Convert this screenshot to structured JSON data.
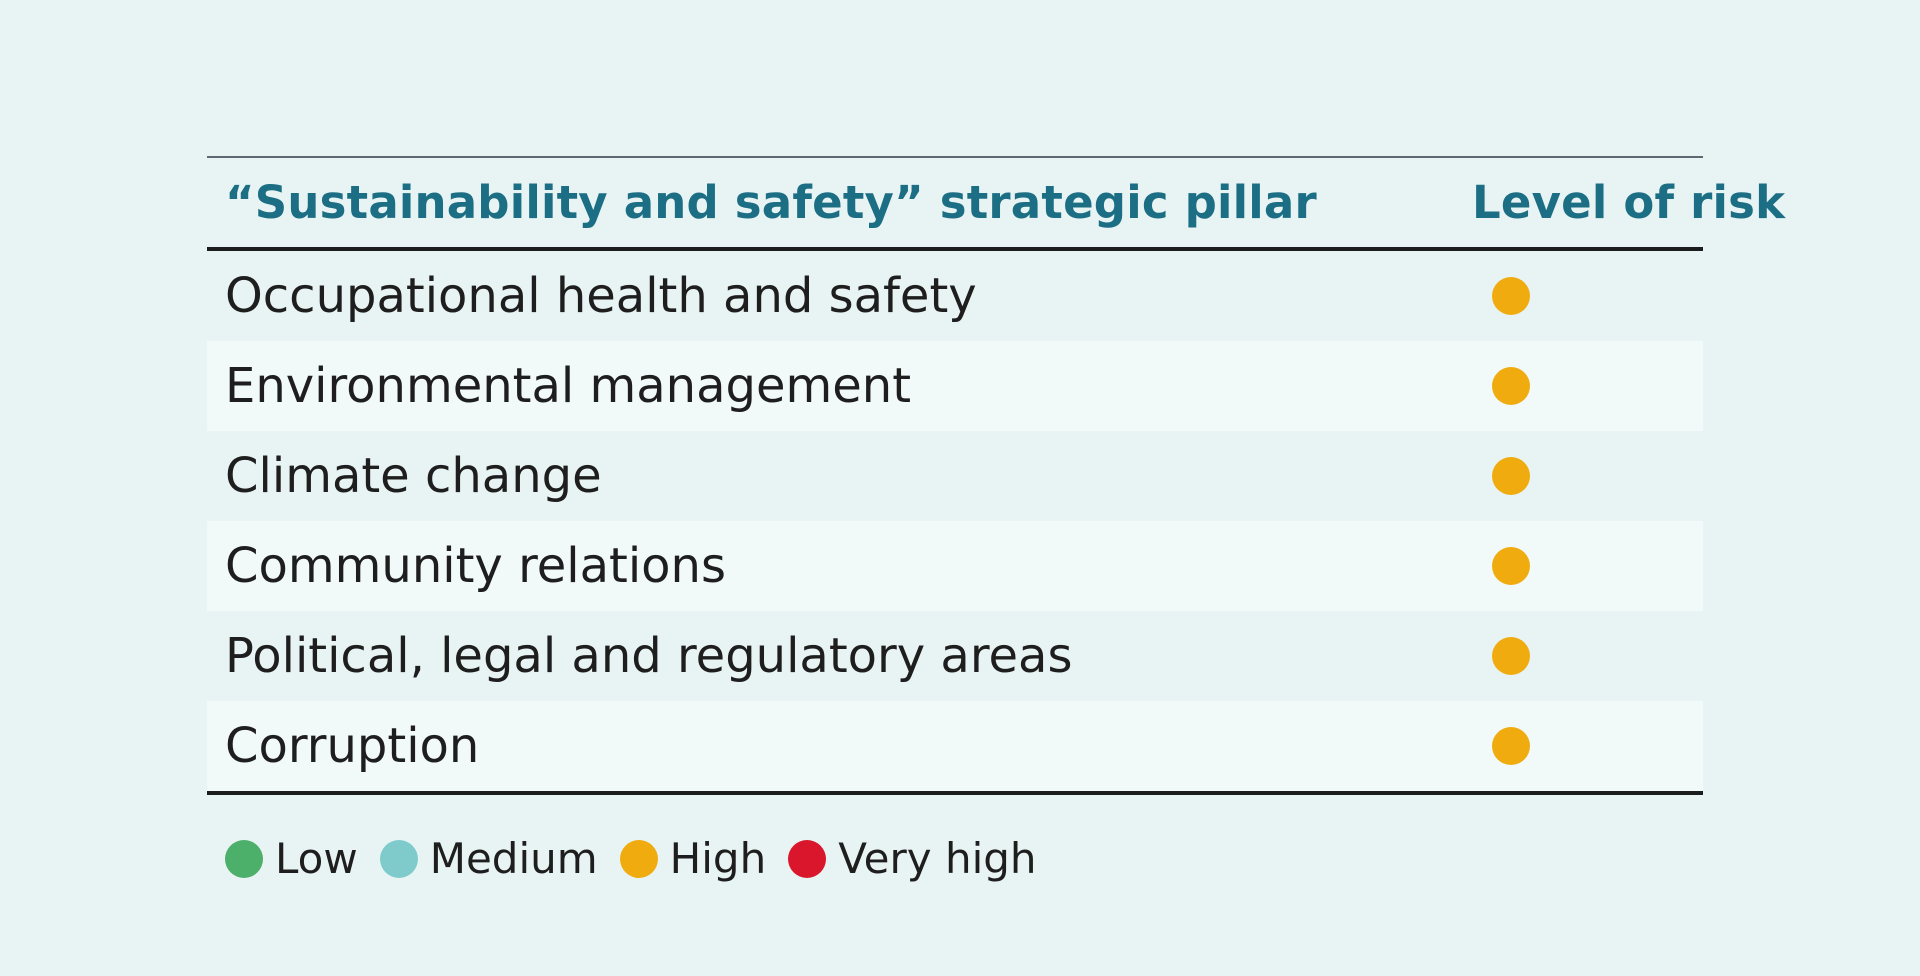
{
  "table": {
    "header": {
      "pillar": "“Sustainability and safety” strategic pillar",
      "risk": "Level of risk"
    },
    "rows": [
      {
        "label": "Occupational health and safety",
        "risk": "High"
      },
      {
        "label": "Environmental management",
        "risk": "High"
      },
      {
        "label": "Climate change",
        "risk": "High"
      },
      {
        "label": "Community relations",
        "risk": "High"
      },
      {
        "label": "Political, legal and regulatory areas",
        "risk": "High"
      },
      {
        "label": "Corruption",
        "risk": "High"
      }
    ]
  },
  "legend": [
    {
      "label": "Low",
      "color": "#4caf6a"
    },
    {
      "label": "Medium",
      "color": "#7fcbcc"
    },
    {
      "label": "High",
      "color": "#f0ab0f"
    },
    {
      "label": "Very high",
      "color": "#d9162b"
    }
  ],
  "colors": {
    "background": "#e8f4f3",
    "header_text": "#1c6e84",
    "stripe": "#f2f9f9"
  }
}
